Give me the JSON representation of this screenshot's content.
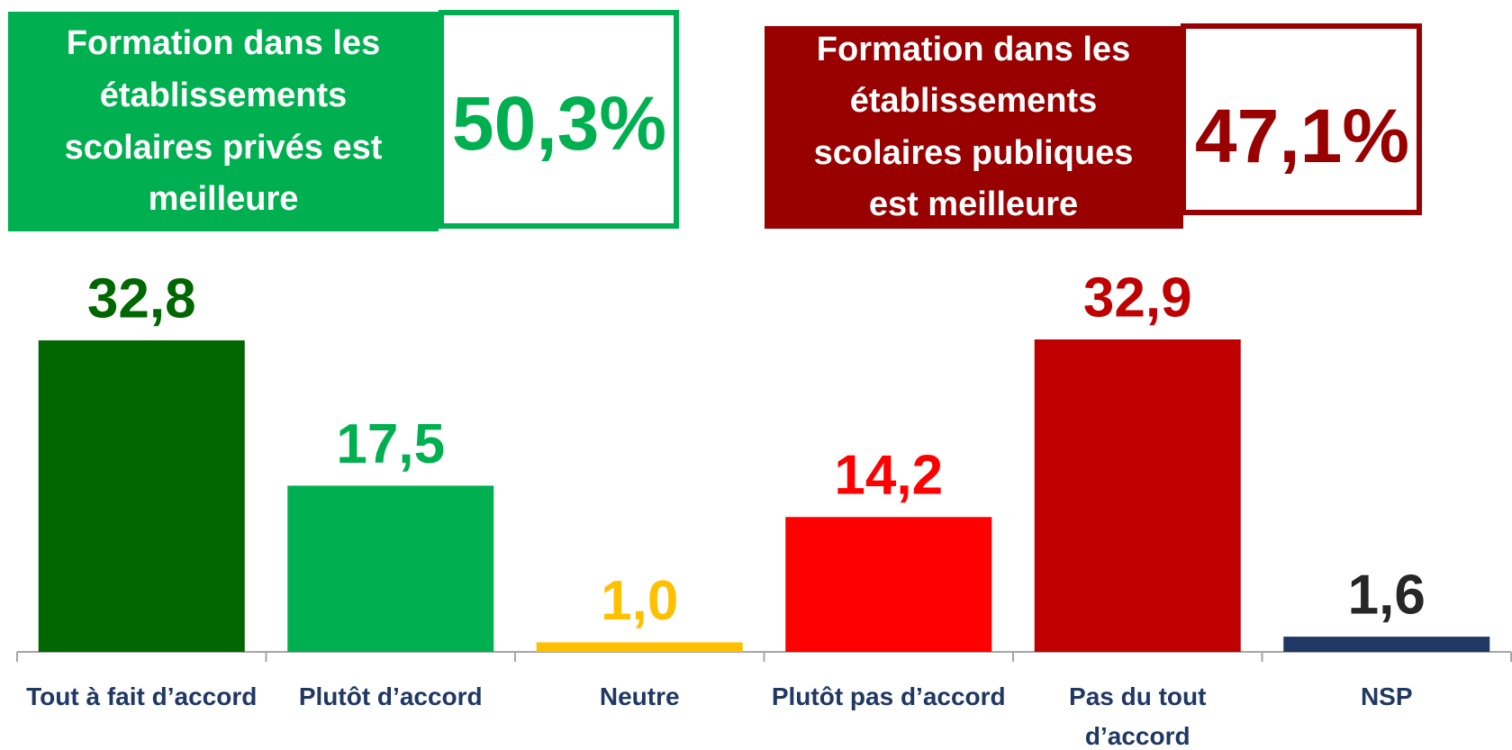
{
  "chart_data": {
    "type": "bar",
    "annotations": [
      {
        "lines": [
          "Formation dans les",
          "établissements",
          "scolaires privés est",
          "meilleure"
        ],
        "value_text": "50,3%",
        "color": "#00b050",
        "text_color": "#00b050"
      },
      {
        "lines": [
          "Formation dans les",
          "établissements",
          "scolaires publiques",
          "est  meilleure"
        ],
        "value_text": "47,1%",
        "color": "#990000",
        "text_color": "#990000"
      }
    ],
    "categories": [
      "Tout à fait d’accord",
      "Plutôt d’accord",
      "Neutre",
      "Plutôt pas d’accord",
      "Pas du tout d’accord",
      "NSP"
    ],
    "values": [
      32.8,
      17.5,
      1.0,
      14.2,
      32.9,
      1.6
    ],
    "value_labels": [
      "32,8",
      "17,5",
      "1,0",
      "14,2",
      "32,9",
      "1,6"
    ],
    "colors": [
      "#006600",
      "#00b050",
      "#ffc000",
      "#ff0000",
      "#c00000",
      "#1f3864"
    ],
    "label_colors": [
      "#006600",
      "#00b050",
      "#ffc000",
      "#ff0000",
      "#c00000",
      "#262626"
    ]
  }
}
